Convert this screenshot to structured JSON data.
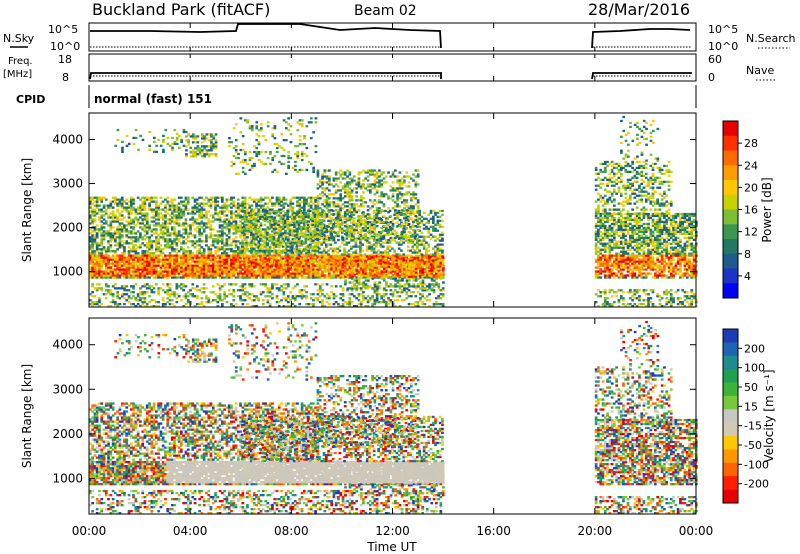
{
  "header": {
    "station": "Buckland Park (fitACF)",
    "beam": "Beam 02",
    "date": "28/Mar/2016"
  },
  "strips": {
    "nsky_label": "N.Sky",
    "nsky_ticks": [
      "10^5",
      "10^0"
    ],
    "nsearch_label": "N.Search",
    "nsearch_ticks": [
      "10^5",
      "10^0"
    ],
    "freq_label": "Freq.",
    "freq_unit": "[MHz]",
    "freq_ticks": [
      "18",
      "8"
    ],
    "nave_label": "Nave",
    "nave_ticks": [
      "60",
      "0"
    ],
    "cpid_label": "CPID",
    "cpid_value": "normal (fast) 151"
  },
  "chart_data": [
    {
      "type": "heatmap",
      "panel": "power",
      "ylabel": "Slant Range [km]",
      "yticks": [
        1000,
        2000,
        3000,
        4000
      ],
      "ylim": [
        200,
        4600
      ],
      "xlim_hours": [
        0,
        24
      ],
      "colorbar": {
        "label": "Power [dB]",
        "ticks": [
          "28",
          "24",
          "20",
          "16",
          "12",
          "8",
          "4"
        ],
        "colors": [
          "#e60000",
          "#ff3000",
          "#ff6a00",
          "#ff9d00",
          "#ffc800",
          "#c8d200",
          "#7dbe32",
          "#3c9650",
          "#237864",
          "#1e5a8c",
          "#1e32c8",
          "#0000ff"
        ]
      }
    },
    {
      "type": "heatmap",
      "panel": "velocity",
      "ylabel": "Slant Range [km]",
      "yticks": [
        1000,
        2000,
        3000,
        4000
      ],
      "ylim": [
        200,
        4600
      ],
      "xlim_hours": [
        0,
        24
      ],
      "colorbar": {
        "label": "Velocity [m s⁻¹]",
        "ticks": [
          "200",
          "100",
          "50",
          "15",
          "-15",
          "-50",
          "-100",
          "-200"
        ],
        "colors": [
          "#1e3cb4",
          "#1e64b4",
          "#1e8c8c",
          "#1ea050",
          "#3cb43c",
          "#78c83c",
          "#c8c8c0",
          "#d2c8b4",
          "#ffc800",
          "#ff9600",
          "#ff6400",
          "#ff1e00",
          "#e60000"
        ]
      }
    }
  ],
  "xaxis": {
    "label": "Time UT",
    "ticks": [
      "00:00",
      "04:00",
      "08:00",
      "12:00",
      "16:00",
      "20:00",
      "00:00"
    ]
  }
}
